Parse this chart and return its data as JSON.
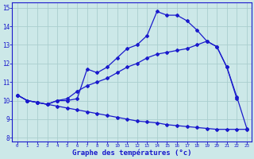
{
  "xlabel": "Graphe des températures (°c)",
  "background_color": "#cce8e8",
  "line_color": "#1a1acc",
  "grid_color": "#aacece",
  "xlim": [
    -0.5,
    23.5
  ],
  "ylim": [
    7.8,
    15.3
  ],
  "yticks": [
    8,
    9,
    10,
    11,
    12,
    13,
    14,
    15
  ],
  "xticks": [
    0,
    1,
    2,
    3,
    4,
    5,
    6,
    7,
    8,
    9,
    10,
    11,
    12,
    13,
    14,
    15,
    16,
    17,
    18,
    19,
    20,
    21,
    22,
    23
  ],
  "line1_x": [
    0,
    1,
    2,
    3,
    4,
    5,
    6,
    7,
    8,
    9,
    10,
    11,
    12,
    13,
    14,
    15,
    16,
    17,
    18,
    19,
    20,
    21,
    22
  ],
  "line1_y": [
    10.3,
    10.0,
    9.9,
    9.8,
    10.0,
    10.0,
    10.1,
    11.7,
    11.5,
    11.8,
    12.3,
    12.8,
    13.0,
    13.5,
    14.8,
    14.6,
    14.6,
    14.3,
    13.8,
    13.2,
    12.9,
    11.8,
    10.1
  ],
  "line2_x": [
    0,
    1,
    2,
    3,
    4,
    5,
    6,
    7,
    8,
    9,
    10,
    11,
    12,
    13,
    14,
    15,
    16,
    17,
    18,
    19,
    20,
    21,
    22,
    23
  ],
  "line2_y": [
    10.3,
    10.0,
    9.9,
    9.8,
    10.0,
    10.1,
    10.5,
    10.8,
    11.0,
    11.2,
    11.5,
    11.8,
    12.0,
    12.3,
    12.5,
    12.6,
    12.7,
    12.8,
    13.0,
    13.2,
    12.9,
    11.8,
    10.2,
    8.5
  ],
  "line3_x": [
    0,
    1,
    2,
    3,
    4,
    5,
    6,
    7,
    8,
    9,
    10,
    11,
    12,
    13,
    14,
    15,
    16,
    17,
    18,
    19,
    20,
    21,
    22,
    23
  ],
  "line3_y": [
    10.3,
    10.0,
    9.9,
    9.8,
    9.7,
    9.6,
    9.5,
    9.4,
    9.3,
    9.2,
    9.1,
    9.0,
    8.9,
    8.85,
    8.8,
    8.7,
    8.65,
    8.6,
    8.55,
    8.5,
    8.45,
    8.45,
    8.45,
    8.45
  ]
}
